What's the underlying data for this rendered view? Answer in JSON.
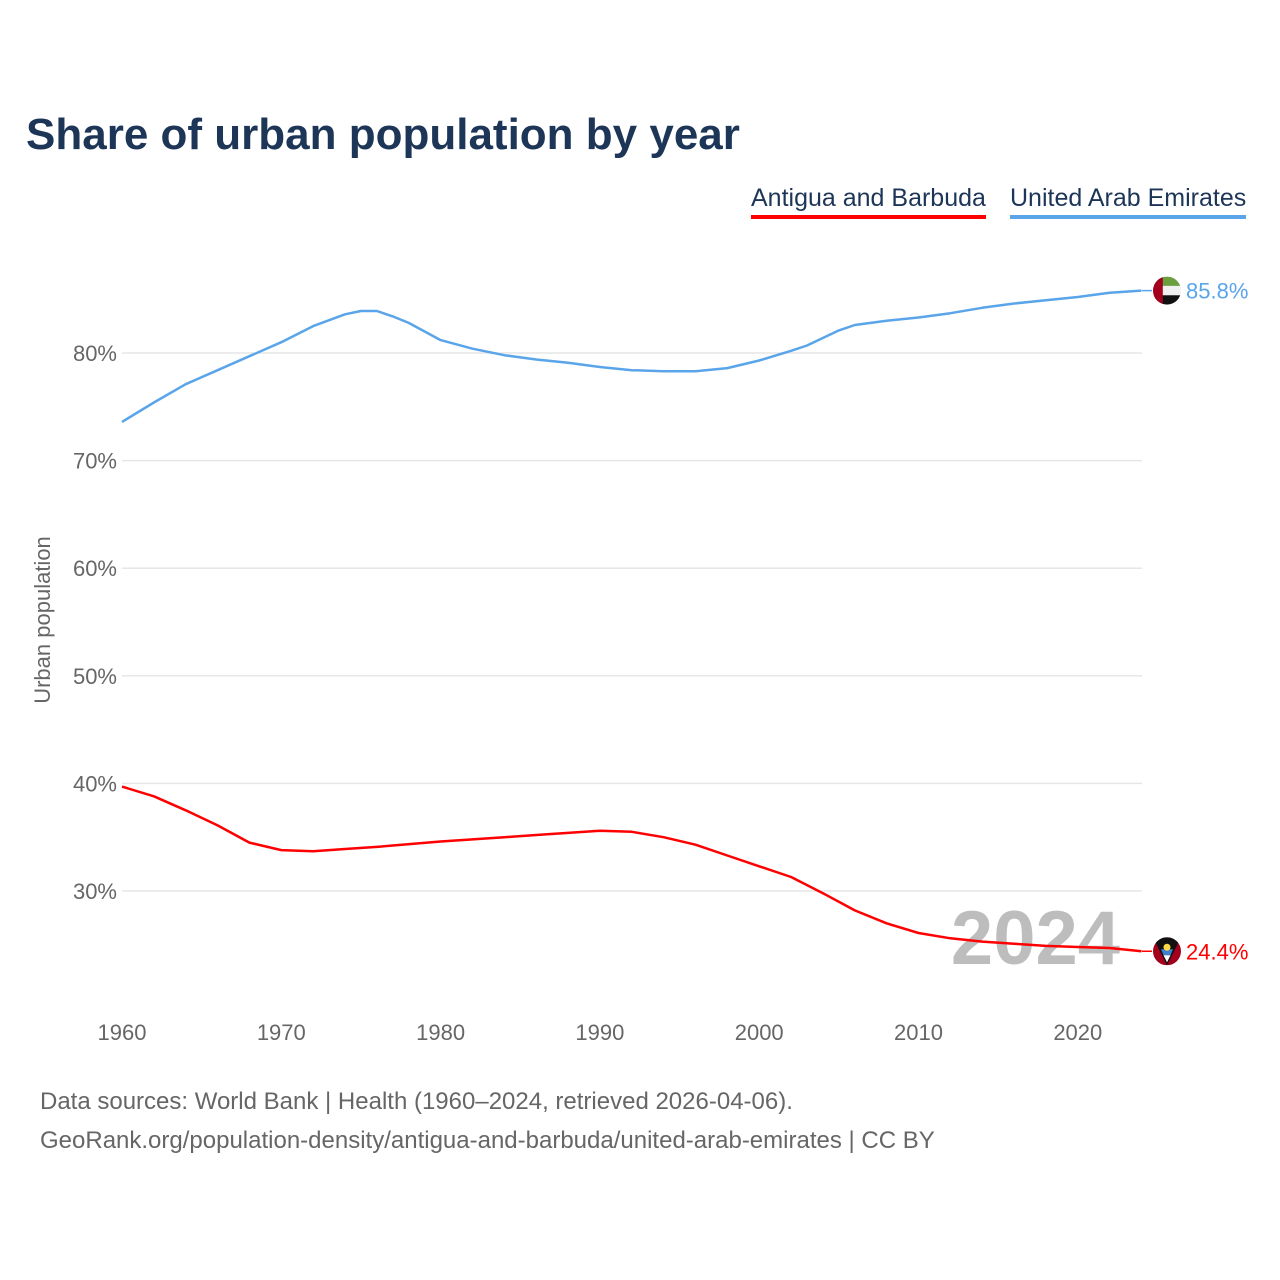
{
  "chart_data": {
    "type": "line",
    "title": "Share of urban population by year",
    "ylabel": "Urban population",
    "xlabel": "",
    "xlim": [
      1960,
      2024
    ],
    "ylim": [
      20,
      90
    ],
    "x_ticks": [
      "1960",
      "1970",
      "1980",
      "1990",
      "2000",
      "2010",
      "2020"
    ],
    "y_ticks": [
      "30%",
      "40%",
      "50%",
      "60%",
      "70%",
      "80%"
    ],
    "watermark_year": "2024",
    "legend_placement": "top-right",
    "series": [
      {
        "name": "Antigua and Barbuda",
        "color": "#ff0000",
        "end_label": "24.4%",
        "x": [
          1960,
          1962,
          1964,
          1966,
          1968,
          1970,
          1972,
          1974,
          1976,
          1980,
          1984,
          1986,
          1990,
          1992,
          1994,
          1996,
          1998,
          2000,
          2002,
          2004,
          2006,
          2008,
          2010,
          2012,
          2014,
          2016,
          2018,
          2020,
          2022,
          2024
        ],
        "y": [
          39.7,
          38.8,
          37.5,
          36.1,
          34.5,
          33.8,
          33.7,
          33.9,
          34.1,
          34.6,
          35.0,
          35.2,
          35.6,
          35.5,
          35.0,
          34.3,
          33.3,
          32.3,
          31.3,
          29.8,
          28.2,
          27.0,
          26.1,
          25.6,
          25.3,
          25.1,
          24.9,
          24.8,
          24.7,
          24.4
        ]
      },
      {
        "name": "United Arab Emirates",
        "color": "#5aa5ea",
        "end_label": "85.8%",
        "x": [
          1960,
          1962,
          1964,
          1966,
          1968,
          1970,
          1972,
          1974,
          1975,
          1976,
          1977,
          1978,
          1980,
          1982,
          1984,
          1986,
          1988,
          1990,
          1992,
          1994,
          1996,
          1998,
          2000,
          2002,
          2003,
          2005,
          2006,
          2008,
          2010,
          2012,
          2014,
          2016,
          2018,
          2020,
          2022,
          2024
        ],
        "y": [
          73.6,
          75.4,
          77.1,
          78.4,
          79.7,
          81.0,
          82.5,
          83.6,
          83.9,
          83.9,
          83.4,
          82.8,
          81.2,
          80.4,
          79.8,
          79.4,
          79.1,
          78.7,
          78.4,
          78.3,
          78.3,
          78.6,
          79.3,
          80.2,
          80.7,
          82.1,
          82.6,
          83.0,
          83.3,
          83.7,
          84.2,
          84.6,
          84.9,
          85.2,
          85.6,
          85.8
        ]
      }
    ]
  },
  "footer": {
    "line1": "Data sources: World Bank | Health (1960–2024, retrieved 2026-04-06).",
    "line2": "GeoRank.org/population-density/antigua-and-barbuda/united-arab-emirates | CC BY"
  }
}
